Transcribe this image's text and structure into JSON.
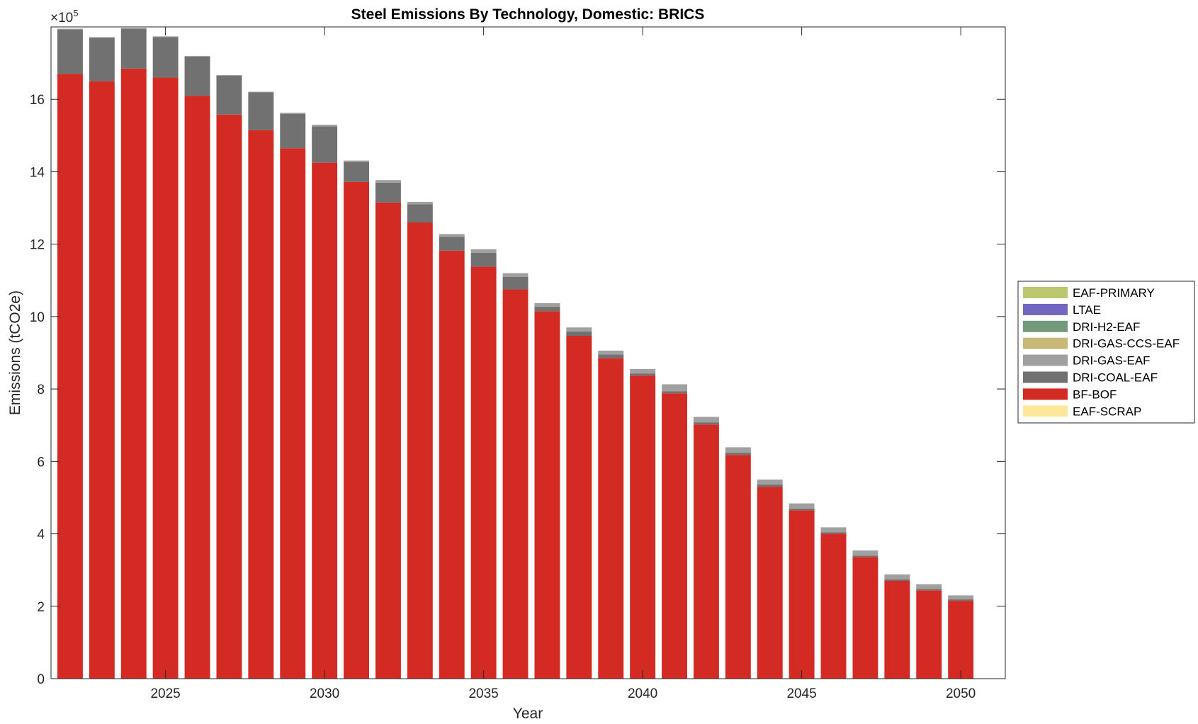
{
  "chart_data": {
    "type": "bar",
    "stacked": true,
    "title": "Steel Emissions By Technology, Domestic: BRICS",
    "xlabel": "Year",
    "ylabel": "Emissions (tCO2e)",
    "y_exponent_label": "×10",
    "y_exponent": "5",
    "ylim": [
      0,
      18
    ],
    "xlim": [
      2021.4,
      2051.4
    ],
    "yticks": [
      "0",
      "2",
      "4",
      "6",
      "8",
      "10",
      "12",
      "14",
      "16"
    ],
    "xticks": [
      "2025",
      "2030",
      "2035",
      "2040",
      "2045",
      "2050"
    ],
    "grid": false,
    "legend_position": "outside-right",
    "categories": [
      2022,
      2023,
      2024,
      2025,
      2026,
      2027,
      2028,
      2029,
      2030,
      2031,
      2032,
      2033,
      2034,
      2035,
      2036,
      2037,
      2038,
      2039,
      2040,
      2041,
      2042,
      2043,
      2044,
      2045,
      2046,
      2047,
      2048,
      2049,
      2050
    ],
    "series": [
      {
        "name": "EAF-SCRAP",
        "color": "#fde79a",
        "values": [
          0,
          0,
          0,
          0,
          0,
          0,
          0,
          0,
          0,
          0,
          0,
          0,
          0,
          0,
          0,
          0,
          0,
          0,
          0,
          0,
          0,
          0,
          0,
          0,
          0,
          0,
          0,
          0,
          0
        ]
      },
      {
        "name": "BF-BOF",
        "color": "#d32a23",
        "values": [
          16.7,
          16.5,
          16.85,
          16.6,
          16.1,
          15.58,
          15.15,
          14.65,
          14.25,
          13.72,
          13.15,
          12.6,
          11.82,
          11.38,
          10.75,
          10.15,
          9.47,
          8.85,
          8.37,
          7.88,
          7.02,
          6.18,
          5.3,
          4.65,
          4.0,
          3.36,
          2.7,
          2.44,
          2.15
        ]
      },
      {
        "name": "DRI-COAL-EAF",
        "color": "#717171",
        "values": [
          1.23,
          1.2,
          1.1,
          1.12,
          1.08,
          1.07,
          1.04,
          0.95,
          1.0,
          0.55,
          0.55,
          0.5,
          0.38,
          0.38,
          0.35,
          0.12,
          0.12,
          0.1,
          0.06,
          0.06,
          0.06,
          0.06,
          0.06,
          0.05,
          0.04,
          0.04,
          0.04,
          0.04,
          0.04
        ]
      },
      {
        "name": "DRI-GAS-EAF",
        "color": "#a0a0a0",
        "values": [
          0.02,
          0.02,
          0.02,
          0.02,
          0.02,
          0.02,
          0.02,
          0.03,
          0.05,
          0.04,
          0.07,
          0.07,
          0.08,
          0.1,
          0.1,
          0.1,
          0.11,
          0.11,
          0.12,
          0.19,
          0.15,
          0.15,
          0.14,
          0.14,
          0.14,
          0.14,
          0.14,
          0.13,
          0.11
        ]
      },
      {
        "name": "DRI-GAS-CCS-EAF",
        "color": "#c9b978",
        "values": [
          0,
          0,
          0,
          0,
          0,
          0,
          0,
          0,
          0,
          0,
          0,
          0,
          0,
          0,
          0,
          0,
          0,
          0,
          0,
          0,
          0,
          0,
          0,
          0,
          0,
          0,
          0,
          0,
          0
        ]
      },
      {
        "name": "DRI-H2-EAF",
        "color": "#739a7c",
        "values": [
          0,
          0,
          0,
          0,
          0,
          0,
          0,
          0,
          0,
          0,
          0,
          0,
          0,
          0,
          0,
          0,
          0,
          0,
          0,
          0,
          0,
          0,
          0,
          0,
          0,
          0,
          0,
          0,
          0
        ]
      },
      {
        "name": "LTAE",
        "color": "#7167c1",
        "values": [
          0,
          0,
          0,
          0,
          0,
          0,
          0,
          0,
          0,
          0,
          0,
          0,
          0,
          0,
          0,
          0,
          0,
          0,
          0,
          0,
          0,
          0,
          0,
          0,
          0,
          0,
          0,
          0,
          0
        ]
      },
      {
        "name": "EAF-PRIMARY",
        "color": "#bcc76f",
        "values": [
          0,
          0,
          0,
          0,
          0,
          0,
          0,
          0,
          0,
          0,
          0,
          0,
          0,
          0,
          0,
          0,
          0,
          0,
          0,
          0,
          0,
          0,
          0,
          0,
          0,
          0,
          0,
          0,
          0
        ]
      }
    ],
    "legend_order": [
      "EAF-PRIMARY",
      "LTAE",
      "DRI-H2-EAF",
      "DRI-GAS-CCS-EAF",
      "DRI-GAS-EAF",
      "DRI-COAL-EAF",
      "BF-BOF",
      "EAF-SCRAP"
    ]
  }
}
